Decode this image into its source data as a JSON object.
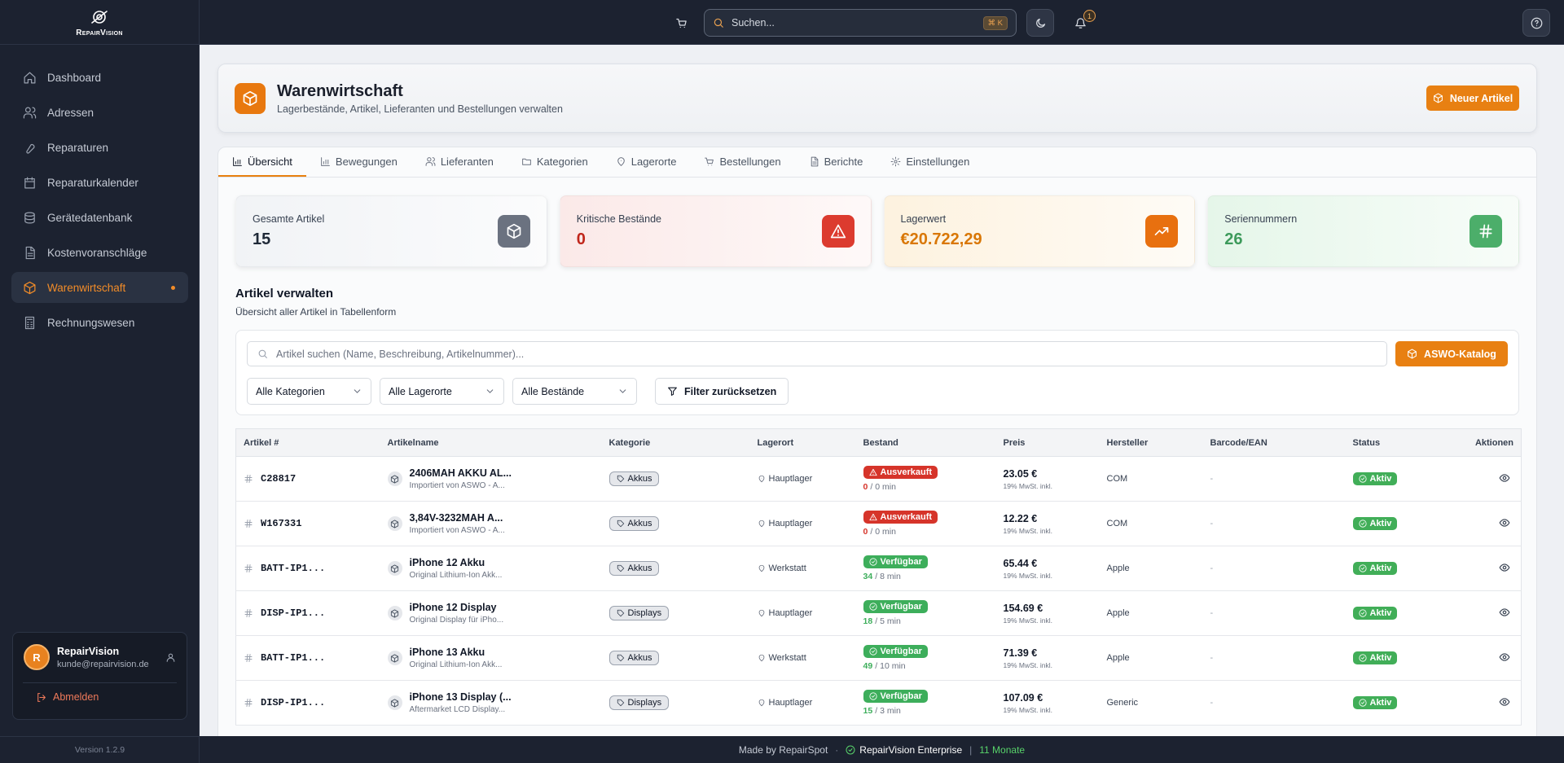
{
  "sidebar": {
    "brand": "RepairVision",
    "nav": [
      "Dashboard",
      "Adressen",
      "Reparaturen",
      "Reparaturkalender",
      "Gerätedatenbank",
      "Kostenvoranschläge",
      "Warenwirtschaft",
      "Rechnungswesen"
    ],
    "active_nav": 6,
    "user": {
      "initial": "R",
      "name": "RepairVision",
      "email": "kunde@repairvision.de"
    },
    "logout": "Abmelden",
    "version": "Version 1.2.9"
  },
  "topbar": {
    "search_placeholder": "Suchen...",
    "shortcut": "⌘ K",
    "notifications": "1"
  },
  "header": {
    "title": "Warenwirtschaft",
    "subtitle": "Lagerbestände, Artikel, Lieferanten und Bestellungen verwalten",
    "button": "Neuer Artikel"
  },
  "tabs": [
    "Übersicht",
    "Bewegungen",
    "Lieferanten",
    "Kategorien",
    "Lagerorte",
    "Bestellungen",
    "Berichte",
    "Einstellungen"
  ],
  "active_tab": 0,
  "stats": [
    {
      "label": "Gesamte Artikel",
      "value": "15",
      "color": "#6b7280",
      "value_color": "#1f2937",
      "background": "#f1f3f6"
    },
    {
      "label": "Kritische Bestände",
      "value": "0",
      "color": "#dc3b2f",
      "value_color": "#c0261b",
      "background": "#fbe9e8"
    },
    {
      "label": "Lagerwert",
      "value": "€20.722,29",
      "color": "#e8700f",
      "value_color": "#d97706",
      "background": "#fdf2df"
    },
    {
      "label": "Seriennummern",
      "value": "26",
      "color": "#4cae6a",
      "value_color": "#3d9a5b",
      "background": "#e5f6e9"
    }
  ],
  "section": {
    "title": "Artikel verwalten",
    "subtitle": "Übersicht aller Artikel in Tabellenform"
  },
  "filters": {
    "search_placeholder": "Artikel suchen (Name, Beschreibung, Artikelnummer)...",
    "catalog_button": "ASWO-Katalog",
    "selects": [
      "Alle Kategorien",
      "Alle Lagerorte",
      "Alle Bestände"
    ],
    "reset": "Filter zurücksetzen"
  },
  "table": {
    "columns": [
      "Artikel #",
      "Artikelname",
      "Kategorie",
      "Lagerort",
      "Bestand",
      "Preis",
      "Hersteller",
      "Barcode/EAN",
      "Status",
      "Aktionen"
    ],
    "stock_separator": "/",
    "rows": [
      {
        "sku": "C28817",
        "name": "2406MAH AKKU AL...",
        "description": "Importiert von ASWO - A...",
        "category": "Akkus",
        "location": "Hauptlager",
        "stock_status": "Ausverkauft",
        "stock_color": "#d6342a",
        "stock": "0",
        "min": "0 min",
        "price": "23.05 €",
        "tax": "19% MwSt. inkl.",
        "manufacturer": "COM",
        "barcode": "-",
        "status": "Aktiv",
        "status_color": "#41ae58"
      },
      {
        "sku": "W167331",
        "name": "3,84V-3232MAH A...",
        "description": "Importiert von ASWO - A...",
        "category": "Akkus",
        "location": "Hauptlager",
        "stock_status": "Ausverkauft",
        "stock_color": "#d6342a",
        "stock": "0",
        "min": "0 min",
        "price": "12.22 €",
        "tax": "19% MwSt. inkl.",
        "manufacturer": "COM",
        "barcode": "-",
        "status": "Aktiv",
        "status_color": "#41ae58"
      },
      {
        "sku": "BATT-IP1...",
        "name": "iPhone 12 Akku",
        "description": "Original Lithium-Ion Akk...",
        "category": "Akkus",
        "location": "Werkstatt",
        "stock_status": "Verfügbar",
        "stock_color": "#3dae5b",
        "stock": "34",
        "min": "8 min",
        "price": "65.44 €",
        "tax": "19% MwSt. inkl.",
        "manufacturer": "Apple",
        "barcode": "-",
        "status": "Aktiv",
        "status_color": "#41ae58"
      },
      {
        "sku": "DISP-IP1...",
        "name": "iPhone 12 Display",
        "description": "Original Display für iPho...",
        "category": "Displays",
        "location": "Hauptlager",
        "stock_status": "Verfügbar",
        "stock_color": "#3dae5b",
        "stock": "18",
        "min": "5 min",
        "price": "154.69 €",
        "tax": "19% MwSt. inkl.",
        "manufacturer": "Apple",
        "barcode": "-",
        "status": "Aktiv",
        "status_color": "#41ae58"
      },
      {
        "sku": "BATT-IP1...",
        "name": "iPhone 13 Akku",
        "description": "Original Lithium-Ion Akk...",
        "category": "Akkus",
        "location": "Werkstatt",
        "stock_status": "Verfügbar",
        "stock_color": "#3dae5b",
        "stock": "49",
        "min": "10 min",
        "price": "71.39 €",
        "tax": "19% MwSt. inkl.",
        "manufacturer": "Apple",
        "barcode": "-",
        "status": "Aktiv",
        "status_color": "#41ae58"
      },
      {
        "sku": "DISP-IP1...",
        "name": "iPhone 13 Display (...",
        "description": "Aftermarket LCD Display...",
        "category": "Displays",
        "location": "Hauptlager",
        "stock_status": "Verfügbar",
        "stock_color": "#3dae5b",
        "stock": "15",
        "min": "3 min",
        "price": "107.09 €",
        "tax": "19% MwSt. inkl.",
        "manufacturer": "Generic",
        "barcode": "-",
        "status": "Aktiv",
        "status_color": "#41ae58"
      }
    ]
  },
  "footer": {
    "made_by": "Made by RepairSpot",
    "separator_1": "·",
    "edition": "RepairVision Enterprise",
    "separator_2": "|",
    "duration": "11 Monate"
  }
}
